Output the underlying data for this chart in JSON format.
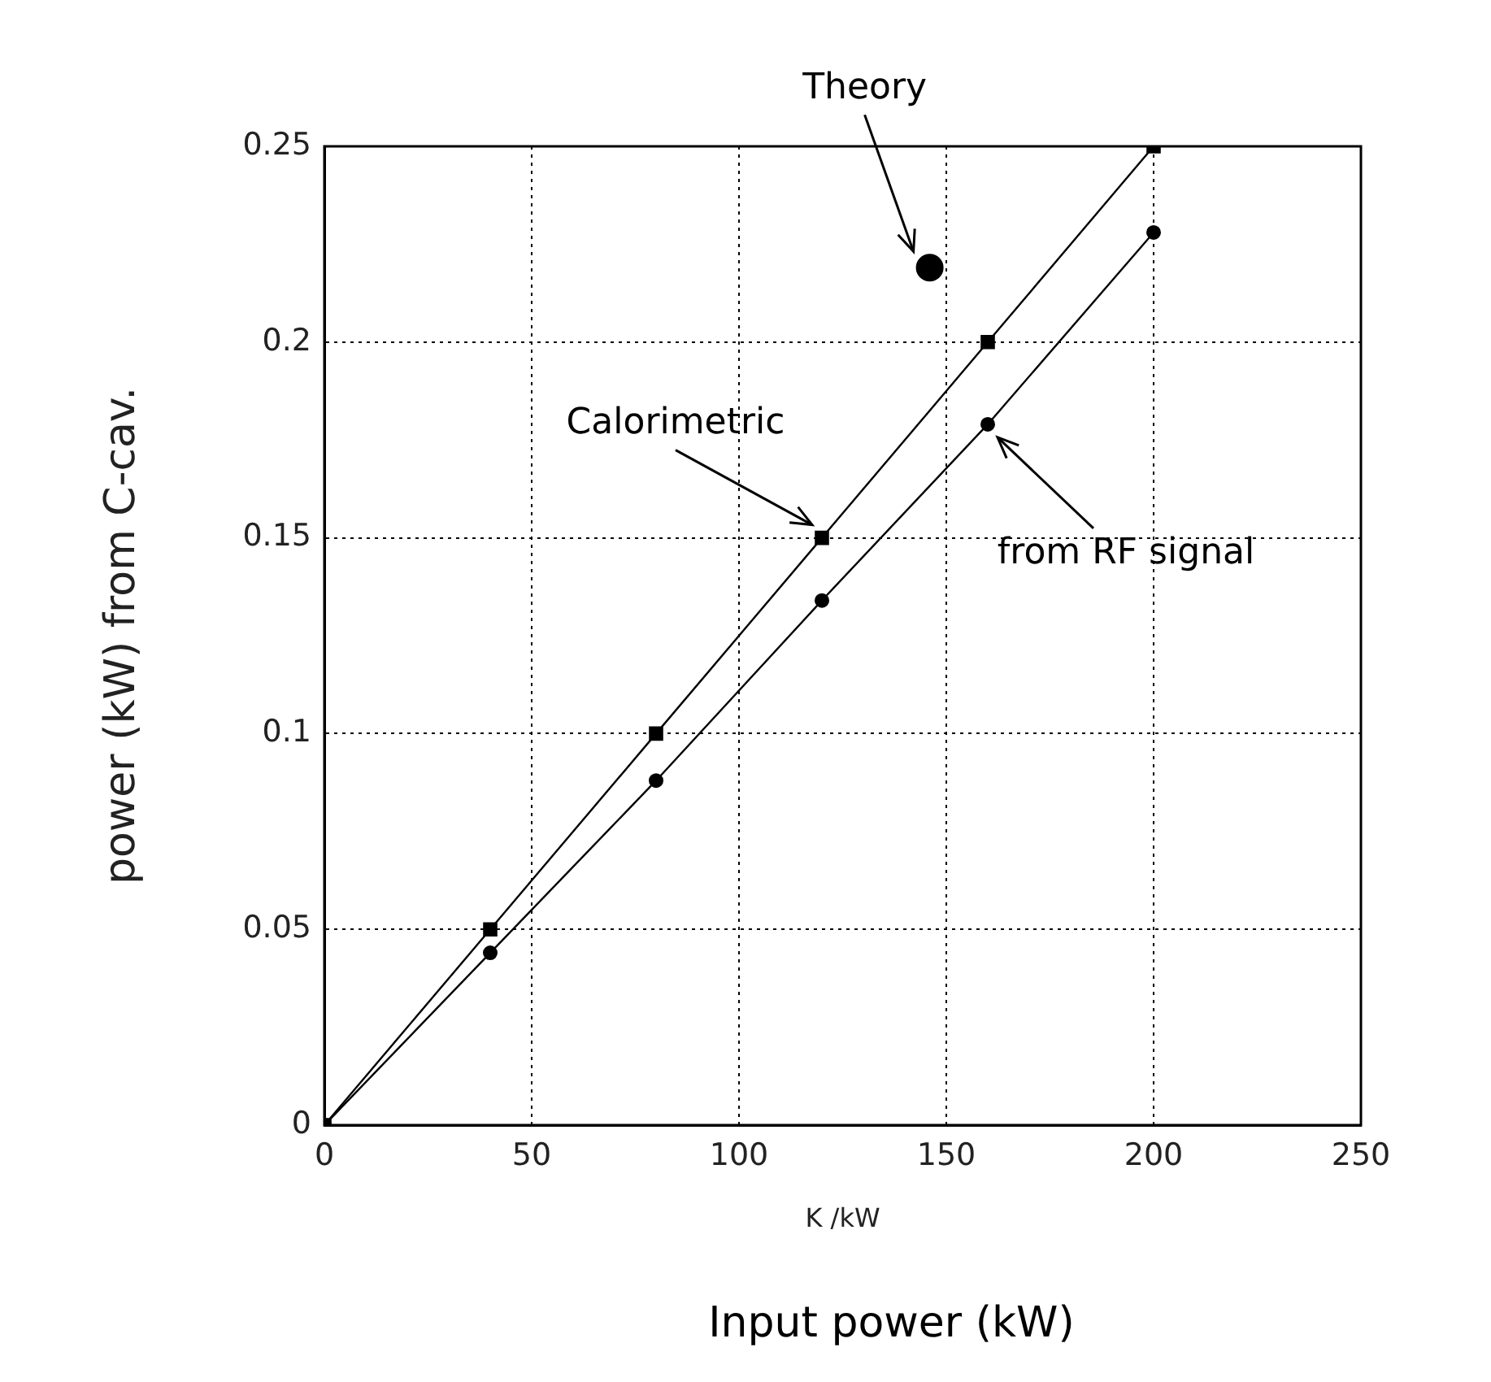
{
  "chart_data": {
    "type": "line",
    "xlabel": "K /kW",
    "ylabel": "power (kW) from C-cav.",
    "x": [
      0,
      40,
      80,
      120,
      160,
      200
    ],
    "series": [
      {
        "name": "Calorimetric",
        "color": "#000000",
        "marker": "square",
        "values": [
          0,
          0.05,
          0.1,
          0.15,
          0.2,
          0.25
        ]
      },
      {
        "name": "from RF signal",
        "color": "#000000",
        "marker": "circle",
        "values": [
          0,
          0.044,
          0.088,
          0.134,
          0.179,
          0.228
        ]
      },
      {
        "name": "Theory",
        "type": "scatter",
        "color": "#000000",
        "marker": "circle",
        "x": [
          146
        ],
        "values": [
          0.219
        ]
      }
    ],
    "xlim": [
      0,
      250
    ],
    "xticks": [
      0,
      50,
      100,
      150,
      200,
      250
    ],
    "ylim": [
      0,
      0.25
    ],
    "yticks": [
      0,
      0.05,
      {
        "value": 0.1,
        "label": "0.1"
      },
      0.15,
      {
        "value": 0.2,
        "label": "0.2"
      },
      0.25
    ],
    "grid": true,
    "legend": false,
    "line_style": "solid",
    "annotations": [
      "Input power (kW)"
    ]
  }
}
